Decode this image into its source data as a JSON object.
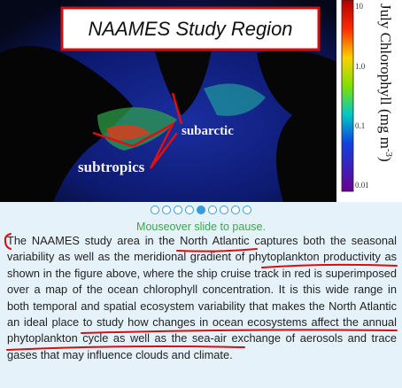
{
  "slide": {
    "title": "NAAMES Study Region",
    "region_labels": [
      "subarctic",
      "subtropics"
    ],
    "colorbar": {
      "label": "July Chlorophyll (mg m",
      "label_superscript": "-3",
      "label_end": ")",
      "ticks": [
        "10",
        "1.0",
        "0.1",
        "0.01"
      ]
    }
  },
  "caption": "Mouseover slide to pause.",
  "paragraph": "The NAAMES study area in the North Atlantic captures both the seasonal variability as well as the meridional gradient of phytoplankton productivity as shown in the figure above, where the ship cruise track in red is superimposed over a map of the ocean chlorophyll concentration. It is this wide range in both temporal and spatial ecosystem variability that makes the North Atlantic an ideal place to study how changes in ocean ecosystems affect the annual phytoplankton cycle as well as the sea-air exchange of aerosols and trace gases that may influence clouds and climate."
}
